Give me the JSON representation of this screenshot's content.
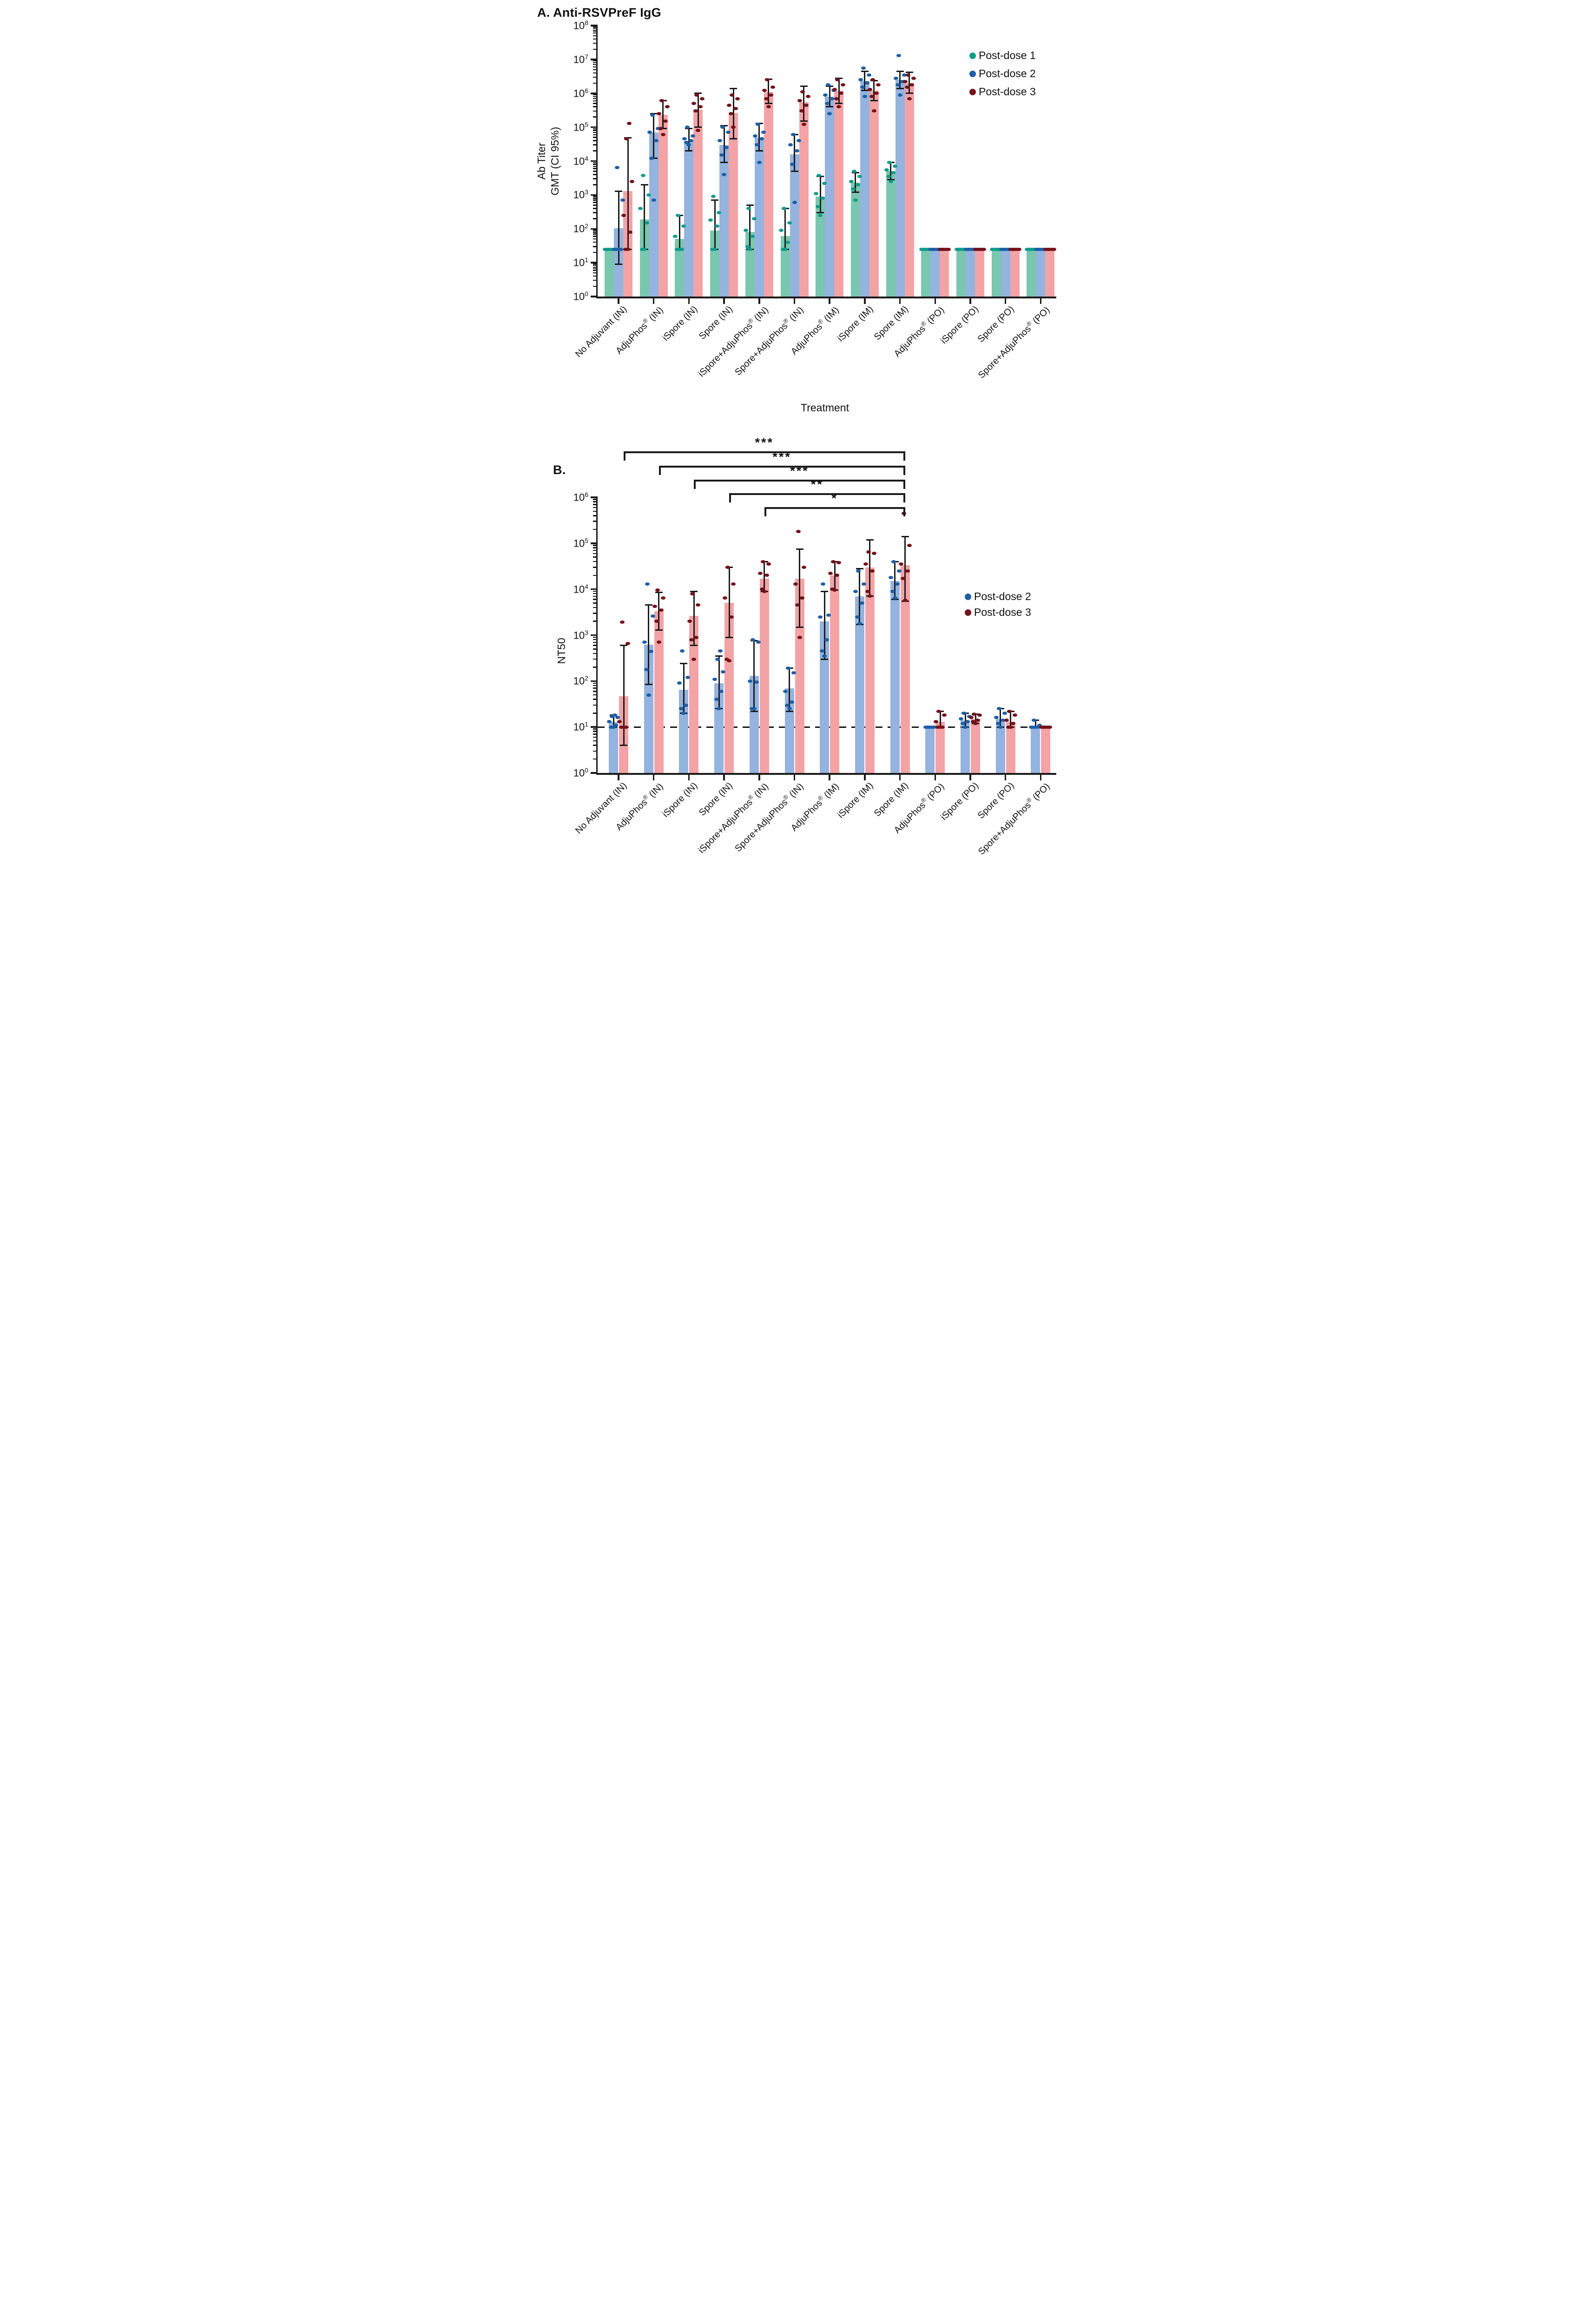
{
  "panels": {
    "a": {
      "title": "A. Anti-RSVPreF IgG"
    },
    "b": {
      "title": "B."
    }
  },
  "colors": {
    "axis": "#1a1a1a",
    "bar_postdose1": "#79C7AE",
    "bar_postdose2": "#94B3DF",
    "bar_postdose3": "#F3A3A6",
    "dot_postdose1": "#0F9C8B",
    "dot_postdose2": "#1C5EA7",
    "dot_postdose3": "#74121A"
  },
  "chart_data": [
    {
      "type": "bar",
      "title": "A. Anti-RSVPreF IgG",
      "ylabel": "Ab Titer\nGMT (CI 95%)",
      "xlabel": "Treatment",
      "yscale": "log10",
      "ylim": [
        1,
        100000000
      ],
      "yticks": [
        0,
        1,
        2,
        3,
        4,
        5,
        6,
        7,
        8
      ],
      "grid": false,
      "legend_position": "top-right",
      "categories": [
        "No Adjuvant (IN)",
        "AdjuPhos® (IN)",
        "iSpore (IN)",
        "Spore (IN)",
        "iSpore+AdjuPhos® (IN)",
        "Spore+AdjuPhos® (IN)",
        "AdjuPhos® (IM)",
        "iSpore (IM)",
        "Spore (IM)",
        "AdjuPhos® (PO)",
        "iSpore (PO)",
        "Spore (PO)",
        "Spore+AdjuPhos® (PO)"
      ],
      "series": [
        {
          "name": "Post-dose 1",
          "fill": "#79C7AE",
          "dot": "#0F9C8B",
          "values": [
            25,
            190,
            50,
            90,
            80,
            60,
            900,
            2300,
            5000,
            25,
            25,
            25,
            25
          ],
          "ci_lo": [
            25,
            25,
            25,
            25,
            25,
            25,
            300,
            1200,
            2800,
            25,
            25,
            25,
            25
          ],
          "ci_hi": [
            25,
            2000,
            250,
            700,
            500,
            400,
            3500,
            4500,
            9000,
            25,
            25,
            25,
            25
          ],
          "points": [
            [
              25,
              25,
              25,
              25,
              25,
              25
            ],
            [
              25,
              25,
              150,
              400,
              1000,
              3800
            ],
            [
              25,
              25,
              25,
              60,
              120,
              250
            ],
            [
              25,
              25,
              120,
              180,
              300,
              900
            ],
            [
              25,
              30,
              60,
              90,
              200,
              400
            ],
            [
              25,
              25,
              40,
              90,
              150,
              400
            ],
            [
              250,
              450,
              800,
              1100,
              2200,
              3800
            ],
            [
              700,
              1500,
              2000,
              2500,
              3500,
              5000
            ],
            [
              2500,
              3500,
              4500,
              5500,
              7000,
              9000
            ],
            [
              25,
              25,
              25,
              25,
              25,
              25
            ],
            [
              25,
              25,
              25,
              25,
              25,
              25
            ],
            [
              25,
              25,
              25,
              25,
              25,
              25
            ],
            [
              25,
              25,
              25,
              25,
              25,
              25
            ]
          ]
        },
        {
          "name": "Post-dose 2",
          "fill": "#94B3DF",
          "dot": "#1C5EA7",
          "values": [
            105,
            70000,
            40000,
            30000,
            50000,
            16000,
            800000,
            2300000,
            2500000,
            25,
            25,
            25,
            25
          ],
          "ci_lo": [
            9,
            12000,
            20000,
            9000,
            20000,
            5000,
            400000,
            1200000,
            1400000,
            25,
            25,
            25,
            25
          ],
          "ci_hi": [
            1300,
            250000,
            90000,
            110000,
            130000,
            60000,
            1600000,
            4500000,
            4500000,
            25,
            25,
            25,
            25
          ],
          "points": [
            [
              25,
              25,
              25,
              25,
              700,
              6500
            ],
            [
              700,
              12000,
              40000,
              70000,
              90000,
              230000
            ],
            [
              30000,
              35000,
              40000,
              45000,
              55000,
              100000
            ],
            [
              4000,
              15000,
              25000,
              40000,
              70000,
              100000
            ],
            [
              9000,
              30000,
              45000,
              55000,
              70000,
              120000
            ],
            [
              600,
              8000,
              20000,
              30000,
              40000,
              60000
            ],
            [
              250000,
              500000,
              700000,
              900000,
              1200000,
              1800000
            ],
            [
              800000,
              1500000,
              2000000,
              2500000,
              3500000,
              5500000
            ],
            [
              900000,
              1800000,
              2200000,
              2800000,
              3500000,
              13000000
            ],
            [
              25,
              25,
              25,
              25,
              25,
              25
            ],
            [
              25,
              25,
              25,
              25,
              25,
              25
            ],
            [
              25,
              25,
              25,
              25,
              25,
              25
            ],
            [
              25,
              25,
              25,
              25,
              25,
              25
            ]
          ]
        },
        {
          "name": "Post-dose 3",
          "fill": "#F3A3A6",
          "dot": "#74121A",
          "values": [
            1300,
            230000,
            330000,
            260000,
            1100000,
            550000,
            1200000,
            1200000,
            2000000,
            25,
            25,
            25,
            25
          ],
          "ci_lo": [
            25,
            90000,
            100000,
            45000,
            500000,
            150000,
            500000,
            600000,
            1000000,
            25,
            25,
            25,
            25
          ],
          "ci_hi": [
            48000,
            600000,
            1000000,
            1400000,
            2600000,
            1600000,
            2800000,
            2400000,
            4200000,
            25,
            25,
            25,
            25
          ],
          "points": [
            [
              25,
              25,
              80,
              250,
              2500,
              45000,
              130000
            ],
            [
              60000,
              90000,
              150000,
              250000,
              400000,
              600000
            ],
            [
              80000,
              300000,
              400000,
              500000,
              700000,
              900000
            ],
            [
              100000,
              250000,
              350000,
              450000,
              700000,
              900000
            ],
            [
              400000,
              700000,
              900000,
              1200000,
              1500000,
              2500000
            ],
            [
              120000,
              300000,
              450000,
              600000,
              800000,
              1100000
            ],
            [
              400000,
              700000,
              1000000,
              1300000,
              1800000,
              2500000
            ],
            [
              300000,
              800000,
              1000000,
              1300000,
              1800000,
              2500000
            ],
            [
              700000,
              1500000,
              1800000,
              2200000,
              2800000,
              3500000
            ],
            [
              25,
              25,
              25,
              25,
              25,
              25
            ],
            [
              25,
              25,
              25,
              25,
              25,
              25
            ],
            [
              25,
              25,
              25,
              25,
              25,
              25
            ],
            [
              25,
              25,
              25,
              25,
              25,
              25
            ]
          ]
        }
      ]
    },
    {
      "type": "bar",
      "title": "B.",
      "ylabel": "NT50",
      "xlabel": "",
      "yscale": "log10",
      "ylim": [
        1,
        1000000
      ],
      "yticks": [
        0,
        1,
        2,
        3,
        4,
        5,
        6
      ],
      "grid": false,
      "legend_position": "right",
      "detection_limit_line": 10,
      "categories": [
        "No Adjuvant (IN)",
        "AdjuPhos® (IN)",
        "iSpore (IN)",
        "Spore (IN)",
        "iSpore+AdjuPhos® (IN)",
        "Spore+AdjuPhos® (IN)",
        "AdjuPhos® (IM)",
        "iSpore (IM)",
        "Spore (IM)",
        "AdjuPhos® (PO)",
        "iSpore (PO)",
        "Spore (PO)",
        "Spore+AdjuPhos® (PO)"
      ],
      "series": [
        {
          "name": "Post-dose 2",
          "fill": "#94B3DF",
          "dot": "#1C5EA7",
          "values": [
            13,
            620,
            65,
            90,
            130,
            70,
            2000,
            7000,
            15000,
            10,
            14,
            15,
            10.5
          ],
          "ci_lo": [
            10,
            85,
            20,
            25,
            22,
            22,
            300,
            1700,
            6000,
            10,
            10,
            10,
            10
          ],
          "ci_hi": [
            18,
            4500,
            240,
            350,
            750,
            190,
            9000,
            28000,
            40000,
            10,
            20,
            25,
            14
          ],
          "points": [
            [
              10,
              10,
              11,
              13,
              16,
              17,
              18
            ],
            [
              50,
              180,
              440,
              700,
              2600,
              13000
            ],
            [
              20,
              25,
              30,
              90,
              120,
              450
            ],
            [
              25,
              40,
              60,
              110,
              160,
              300,
              450
            ],
            [
              25,
              25,
              95,
              100,
              700,
              800
            ],
            [
              25,
              30,
              35,
              60,
              150,
              190
            ],
            [
              350,
              450,
              800,
              2500,
              2700,
              13000
            ],
            [
              1800,
              2500,
              5000,
              9000,
              13000,
              25000
            ],
            [
              6500,
              9000,
              13000,
              18000,
              25000,
              40000
            ],
            [
              10,
              10,
              10,
              10,
              10,
              10
            ],
            [
              10,
              12,
              13,
              15,
              17,
              20
            ],
            [
              10,
              12,
              14,
              16,
              20,
              25
            ],
            [
              10,
              10,
              10,
              10,
              11,
              14
            ]
          ]
        },
        {
          "name": "Post-dose 3",
          "fill": "#F3A3A6",
          "dot": "#74121A",
          "values": [
            47,
            3300,
            2600,
            5100,
            17000,
            17000,
            20000,
            30000,
            33000,
            13,
            15,
            13,
            10
          ],
          "ci_lo": [
            4,
            1300,
            600,
            900,
            9000,
            1500,
            9500,
            7000,
            5500,
            10,
            12,
            10,
            10
          ],
          "ci_hi": [
            600,
            8500,
            9000,
            30000,
            40000,
            75000,
            40000,
            120000,
            140000,
            22,
            19,
            22,
            10
          ],
          "points": [
            [
              10,
              10,
              10,
              13,
              650,
              1900
            ],
            [
              700,
              2000,
              3500,
              4200,
              6500,
              9500
            ],
            [
              300,
              800,
              900,
              2000,
              4500,
              8000
            ],
            [
              280,
              300,
              2500,
              6500,
              13000,
              30000
            ],
            [
              9000,
              10000,
              20000,
              22000,
              35000,
              40000
            ],
            [
              900,
              4500,
              6500,
              13000,
              30000,
              180000
            ],
            [
              9500,
              10000,
              20000,
              22000,
              38000,
              40000
            ],
            [
              7000,
              9000,
              25000,
              35000,
              60000,
              65000
            ],
            [
              5800,
              17000,
              25000,
              35000,
              90000,
              450000
            ],
            [
              10,
              10,
              10,
              13,
              18,
              22
            ],
            [
              12,
              13,
              14,
              16,
              18,
              19
            ],
            [
              10,
              10,
              12,
              14,
              18,
              22
            ],
            [
              10,
              10,
              10,
              10,
              10,
              10
            ]
          ]
        }
      ],
      "significance": [
        {
          "from": 0,
          "to": 8,
          "label": "***"
        },
        {
          "from": 1,
          "to": 8,
          "label": "***"
        },
        {
          "from": 2,
          "to": 8,
          "label": "***"
        },
        {
          "from": 3,
          "to": 8,
          "label": "**"
        },
        {
          "from": 4,
          "to": 8,
          "label": "*"
        }
      ]
    }
  ]
}
